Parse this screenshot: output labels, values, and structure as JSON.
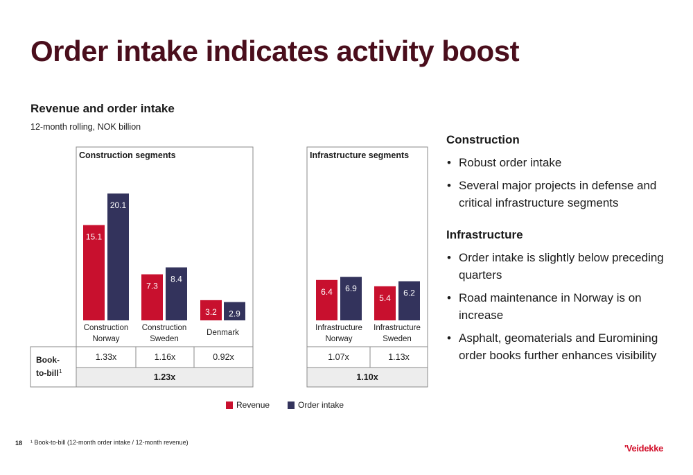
{
  "slide_title": "Order intake indicates activity boost",
  "page_number": "18",
  "footnote": "¹ Book-to-bill (12-month order intake / 12-month revenue)",
  "logo_text": "'Veidekke",
  "colors": {
    "revenue": "#c8102e",
    "order_intake": "#33335c",
    "title": "#4a0e1c"
  },
  "chart_data": {
    "type": "bar",
    "title": "Revenue and order intake",
    "subtitle": "12-month rolling, NOK billion",
    "series": [
      {
        "name": "Revenue",
        "color": "#c8102e"
      },
      {
        "name": "Order intake",
        "color": "#33335c"
      }
    ],
    "panels": [
      {
        "label": "Construction segments",
        "categories": [
          {
            "name": [
              "Construction",
              "Norway"
            ],
            "revenue": 15.1,
            "order_intake": 20.1,
            "book_to_bill": "1.33x"
          },
          {
            "name": [
              "Construction",
              "Sweden"
            ],
            "revenue": 7.3,
            "order_intake": 8.4,
            "book_to_bill": "1.16x"
          },
          {
            "name": [
              "Denmark"
            ],
            "revenue": 3.2,
            "order_intake": 2.9,
            "book_to_bill": "0.92x"
          }
        ],
        "total_book_to_bill": "1.23x"
      },
      {
        "label": "Infrastructure segments",
        "categories": [
          {
            "name": [
              "Infrastructure",
              "Norway"
            ],
            "revenue": 6.4,
            "order_intake": 6.9,
            "book_to_bill": "1.07x"
          },
          {
            "name": [
              "Infrastructure",
              "Sweden"
            ],
            "revenue": 5.4,
            "order_intake": 6.2,
            "book_to_bill": "1.13x"
          }
        ],
        "total_book_to_bill": "1.10x"
      }
    ],
    "book_to_bill_label": [
      "Book-",
      "to-bill"
    ],
    "book_to_bill_superscript": "1"
  },
  "commentary": [
    {
      "heading": "Construction",
      "bullets": [
        "Robust order intake",
        "Several major projects in defense and critical infrastructure segments"
      ]
    },
    {
      "heading": "Infrastructure",
      "bullets": [
        "Order intake is slightly below preceding quarters",
        "Road maintenance in Norway is on increase",
        "Asphalt, geomaterials and Euromining order books further enhances visibility"
      ]
    }
  ]
}
